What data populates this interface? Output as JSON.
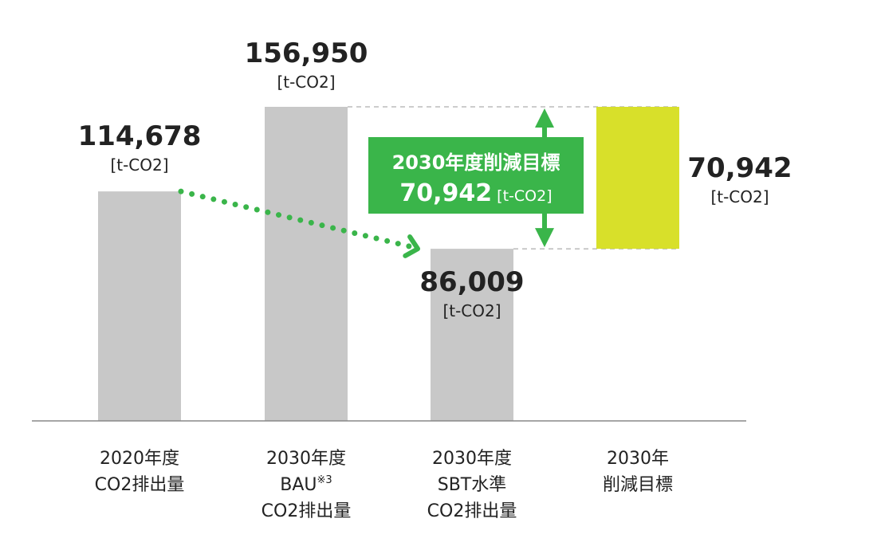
{
  "chart_data": {
    "type": "bar",
    "categories": [
      [
        "2020年度",
        "CO2排出量"
      ],
      [
        "2030年度",
        "BAU※3",
        "CO2排出量"
      ],
      [
        "2030年度",
        "SBT水準",
        "CO2排出量"
      ],
      [
        "2030年",
        "削減目標"
      ]
    ],
    "values": [
      114678,
      156950,
      86009,
      70942
    ],
    "value_labels": [
      "114,678",
      "156,950",
      "86,009",
      "70,942"
    ],
    "unit": "[t-CO2]",
    "bar_colors": [
      "#c8c8c8",
      "#c8c8c8",
      "#c8c8c8",
      "#d8e02a"
    ],
    "floating_bar": {
      "index": 3,
      "base": 86009,
      "top": 156950
    },
    "ylim": [
      0,
      156950
    ],
    "annotation": {
      "line1": "2030年度削減目標",
      "value": "70,942",
      "unit": "[t-CO2]",
      "color": "#3ab54a"
    },
    "trend_arrow": {
      "from_index": 0,
      "to_index": 2,
      "color": "#3ab54a"
    },
    "grid": false,
    "legend": "none"
  }
}
